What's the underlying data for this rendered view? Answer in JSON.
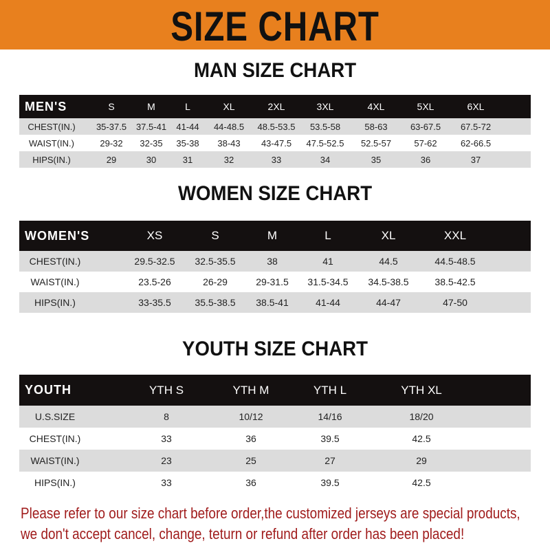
{
  "banner": {
    "title": "SIZE CHART",
    "color": "#e8801e"
  },
  "tables": [
    {
      "title": "MAN SIZE CHART",
      "header_label": "MEN'S",
      "sizes": [
        "S",
        "M",
        "L",
        "XL",
        "2XL",
        "3XL",
        "4XL",
        "5XL",
        "6XL"
      ],
      "rows": [
        {
          "label": "CHEST(IN.)",
          "values": [
            "35-37.5",
            "37.5-41",
            "41-44",
            "44-48.5",
            "48.5-53.5",
            "53.5-58",
            "58-63",
            "63-67.5",
            "67.5-72"
          ]
        },
        {
          "label": "WAIST(IN.)",
          "values": [
            "29-32",
            "32-35",
            "35-38",
            "38-43",
            "43-47.5",
            "47.5-52.5",
            "52.5-57",
            "57-62",
            "62-66.5"
          ]
        },
        {
          "label": "HIPS(IN.)",
          "values": [
            "29",
            "30",
            "31",
            "32",
            "33",
            "34",
            "35",
            "36",
            "37"
          ]
        }
      ]
    },
    {
      "title": "WOMEN SIZE CHART",
      "header_label": "WOMEN'S",
      "sizes": [
        "XS",
        "S",
        "M",
        "L",
        "XL",
        "XXL"
      ],
      "rows": [
        {
          "label": "CHEST(IN.)",
          "values": [
            "29.5-32.5",
            "32.5-35.5",
            "38",
            "41",
            "44.5",
            "44.5-48.5"
          ]
        },
        {
          "label": "WAIST(IN.)",
          "values": [
            "23.5-26",
            "26-29",
            "29-31.5",
            "31.5-34.5",
            "34.5-38.5",
            "38.5-42.5"
          ]
        },
        {
          "label": "HIPS(IN.)",
          "values": [
            "33-35.5",
            "35.5-38.5",
            "38.5-41",
            "41-44",
            "44-47",
            "47-50"
          ]
        }
      ]
    },
    {
      "title": "YOUTH SIZE CHART",
      "header_label": "YOUTH",
      "sizes": [
        "YTH S",
        "YTH M",
        "YTH L",
        "YTH XL"
      ],
      "rows": [
        {
          "label": "U.S.SIZE",
          "values": [
            "8",
            "10/12",
            "14/16",
            "18/20"
          ]
        },
        {
          "label": "CHEST(IN.)",
          "values": [
            "33",
            "36",
            "39.5",
            "42.5"
          ]
        },
        {
          "label": "WAIST(IN.)",
          "values": [
            "23",
            "25",
            "27",
            "29"
          ]
        },
        {
          "label": "HIPS(IN.)",
          "values": [
            "33",
            "36",
            "39.5",
            "42.5"
          ]
        }
      ]
    }
  ],
  "notice": {
    "line1": "Please refer to our size chart before order,the customized jerseys are special products,",
    "line2": "we don't accept cancel, change, teturn or refund after order has been placed!",
    "color": "#a01c1c"
  }
}
